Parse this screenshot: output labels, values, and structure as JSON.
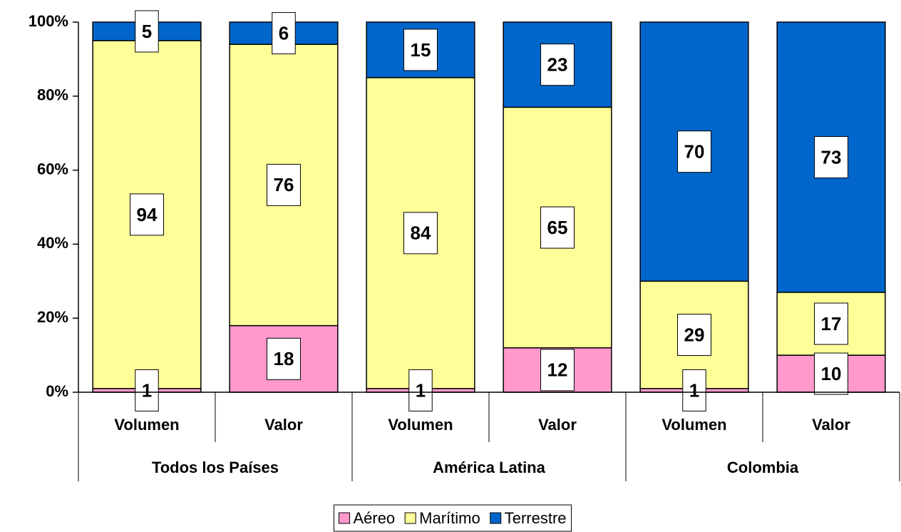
{
  "chart_data": {
    "type": "stacked_bar",
    "categories": [
      "Volumen",
      "Valor",
      "Volumen",
      "Valor",
      "Volumen",
      "Valor"
    ],
    "groups": [
      "Todos los Países",
      "América Latina",
      "Colombia"
    ],
    "series": [
      {
        "name": "Aéreo",
        "color": "#ff99cc",
        "values": [
          1,
          18,
          1,
          12,
          1,
          10
        ]
      },
      {
        "name": "Marítimo",
        "color": "#ffff99",
        "values": [
          94,
          76,
          84,
          65,
          29,
          17
        ]
      },
      {
        "name": "Terrestre",
        "color": "#0066cc",
        "values": [
          5,
          6,
          15,
          23,
          70,
          73
        ]
      }
    ],
    "ylim": [
      0,
      100
    ],
    "yticks": [
      {
        "value": 0,
        "label": "0%"
      },
      {
        "value": 20,
        "label": "20%"
      },
      {
        "value": 40,
        "label": "40%"
      },
      {
        "value": 60,
        "label": "60%"
      },
      {
        "value": 80,
        "label": "80%"
      },
      {
        "value": 100,
        "label": "100%"
      }
    ],
    "grid": false,
    "legend": "bottom"
  }
}
